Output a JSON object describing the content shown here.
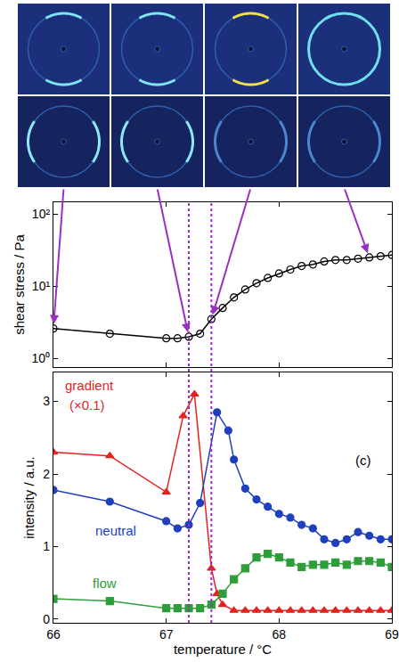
{
  "chart_data": [
    {
      "type": "line",
      "y_title": "shear stress / Pa",
      "log": "y",
      "xlim": [
        66,
        69
      ],
      "xticks": [
        66,
        67,
        68,
        69
      ],
      "ylim": [
        0.76,
        145
      ],
      "yticks": [
        {
          "value": 1,
          "label": "10⁰"
        },
        {
          "value": 10,
          "label": "10¹"
        },
        {
          "value": 100,
          "label": "10²"
        }
      ],
      "tick_labels": "y",
      "reference_lines": [
        67.2,
        67.4
      ],
      "pattern_temperatures": [
        66.0,
        67.2,
        67.4,
        68.8
      ],
      "series": [
        {
          "color": "#000000",
          "marker": "open circle",
          "x": [
            66.0,
            66.5,
            67.0,
            67.1,
            67.2,
            67.3,
            67.4,
            67.5,
            67.6,
            67.7,
            67.8,
            67.9,
            68.0,
            68.1,
            68.2,
            68.3,
            68.4,
            68.5,
            68.6,
            68.7,
            68.8,
            68.9,
            69.0
          ],
          "values": [
            2.6,
            2.2,
            1.9,
            1.9,
            2.0,
            2.2,
            3.5,
            5,
            7,
            9,
            11,
            13,
            15,
            17,
            19,
            20,
            22,
            23,
            23,
            24,
            25,
            26,
            27
          ]
        }
      ]
    },
    {
      "type": "line",
      "x_title": "temperature / °C",
      "y_title": "intensity / a.u.",
      "xlim": [
        66,
        69
      ],
      "xticks": [
        66,
        67,
        68,
        69
      ],
      "ylim": [
        -0.05,
        3.4
      ],
      "yticks": [
        0,
        1,
        2,
        3
      ],
      "series": [
        {
          "name": "gradient",
          "color": "#e3231f",
          "marker": "triangle",
          "label_at": [
            66.32,
            3.22
          ],
          "x": [
            66.0,
            66.5,
            67.0,
            67.15,
            67.25,
            67.4,
            67.45,
            67.5,
            67.6,
            67.7,
            67.8,
            67.9,
            68.0,
            68.1,
            68.2,
            68.3,
            68.4,
            68.5,
            68.6,
            68.7,
            68.8,
            68.9,
            69.0
          ],
          "values": [
            2.3,
            2.25,
            1.75,
            2.8,
            3.1,
            0.7,
            0.35,
            0.2,
            0.12,
            0.12,
            0.12,
            0.12,
            0.12,
            0.12,
            0.12,
            0.12,
            0.12,
            0.12,
            0.12,
            0.12,
            0.12,
            0.12,
            0.12
          ]
        },
        {
          "name": "neutral",
          "color": "#1f3fbf",
          "marker": "circle",
          "label_at": [
            66.55,
            1.22
          ],
          "x": [
            66.0,
            66.5,
            67.0,
            67.1,
            67.2,
            67.3,
            67.45,
            67.55,
            67.6,
            67.7,
            67.8,
            67.9,
            68.0,
            68.1,
            68.2,
            68.3,
            68.4,
            68.5,
            68.6,
            68.7,
            68.8,
            68.9,
            69.0
          ],
          "values": [
            1.78,
            1.62,
            1.35,
            1.25,
            1.3,
            1.6,
            2.85,
            2.6,
            2.2,
            1.8,
            1.65,
            1.55,
            1.45,
            1.4,
            1.3,
            1.25,
            1.1,
            1.05,
            1.1,
            1.2,
            1.15,
            1.1,
            1.1
          ]
        },
        {
          "name": "flow",
          "color": "#2e9e3a",
          "marker": "square",
          "label_at": [
            66.45,
            0.5
          ],
          "x": [
            66.0,
            66.5,
            67.0,
            67.1,
            67.2,
            67.3,
            67.4,
            67.5,
            67.6,
            67.7,
            67.8,
            67.9,
            68.0,
            68.1,
            68.2,
            68.3,
            68.4,
            68.5,
            68.6,
            68.7,
            68.8,
            68.9,
            69.0
          ],
          "values": [
            0.28,
            0.25,
            0.15,
            0.15,
            0.15,
            0.15,
            0.2,
            0.35,
            0.55,
            0.7,
            0.85,
            0.9,
            0.85,
            0.78,
            0.72,
            0.75,
            0.75,
            0.78,
            0.75,
            0.8,
            0.8,
            0.78,
            0.72
          ]
        }
      ],
      "annotations": [
        {
          "text": "(×0.1)",
          "x": 66.3,
          "y": 2.95,
          "color": "#e3231f"
        },
        {
          "text": "(c)",
          "x": 68.75,
          "y": 2.19,
          "color": "#000000"
        }
      ]
    }
  ]
}
